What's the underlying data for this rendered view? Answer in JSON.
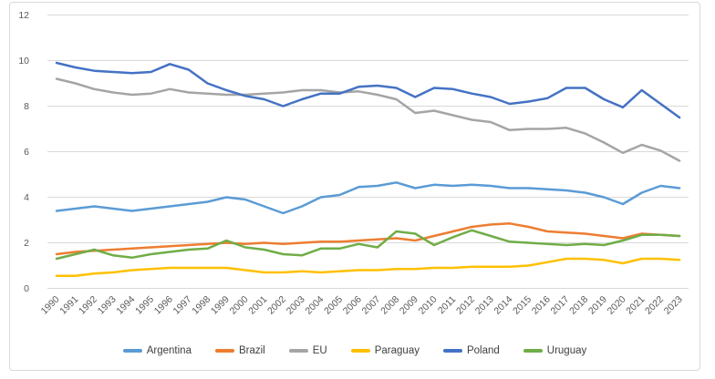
{
  "chart_data": {
    "type": "line",
    "title": "",
    "xlabel": "",
    "ylabel": "",
    "ylim": [
      0,
      12
    ],
    "y_tick_labels": [
      0,
      2,
      4,
      6,
      8,
      10,
      12
    ],
    "grid": true,
    "legend_position": "bottom",
    "x": [
      1990,
      1991,
      1992,
      1993,
      1994,
      1995,
      1996,
      1997,
      1998,
      1999,
      2000,
      2001,
      2002,
      2003,
      2004,
      2005,
      2006,
      2007,
      2008,
      2009,
      2010,
      2011,
      2012,
      2013,
      2014,
      2015,
      2016,
      2017,
      2018,
      2019,
      2020,
      2021,
      2022,
      2023
    ],
    "series": [
      {
        "name": "Argentina",
        "color": "#5B9BD5",
        "values": [
          3.4,
          3.5,
          3.6,
          3.5,
          3.4,
          3.5,
          3.6,
          3.7,
          3.8,
          4.0,
          3.9,
          3.6,
          3.3,
          3.6,
          4.0,
          4.1,
          4.45,
          4.5,
          4.65,
          4.4,
          4.55,
          4.5,
          4.55,
          4.5,
          4.4,
          4.4,
          4.35,
          4.3,
          4.2,
          4.0,
          3.7,
          4.2,
          4.5,
          4.4
        ]
      },
      {
        "name": "Brazil",
        "color": "#ED7D31",
        "values": [
          1.5,
          1.6,
          1.65,
          1.7,
          1.75,
          1.8,
          1.85,
          1.9,
          1.95,
          2.0,
          1.95,
          2.0,
          1.95,
          2.0,
          2.05,
          2.05,
          2.1,
          2.15,
          2.2,
          2.1,
          2.3,
          2.5,
          2.7,
          2.8,
          2.85,
          2.7,
          2.5,
          2.45,
          2.4,
          2.3,
          2.2,
          2.4,
          2.35,
          2.3
        ]
      },
      {
        "name": "EU",
        "color": "#A5A5A5",
        "values": [
          9.2,
          9.0,
          8.75,
          8.6,
          8.5,
          8.55,
          8.75,
          8.6,
          8.55,
          8.5,
          8.5,
          8.55,
          8.6,
          8.7,
          8.7,
          8.6,
          8.65,
          8.5,
          8.3,
          7.7,
          7.8,
          7.6,
          7.4,
          7.3,
          6.95,
          7.0,
          7.0,
          7.05,
          6.8,
          6.4,
          5.95,
          6.3,
          6.05,
          5.6
        ]
      },
      {
        "name": "Paraguay",
        "color": "#FFC000",
        "values": [
          0.55,
          0.55,
          0.65,
          0.7,
          0.8,
          0.85,
          0.9,
          0.9,
          0.9,
          0.9,
          0.8,
          0.7,
          0.7,
          0.75,
          0.7,
          0.75,
          0.8,
          0.8,
          0.85,
          0.85,
          0.9,
          0.9,
          0.95,
          0.95,
          0.95,
          1.0,
          1.15,
          1.3,
          1.3,
          1.25,
          1.1,
          1.3,
          1.3,
          1.25
        ]
      },
      {
        "name": "Poland",
        "color": "#4472C4",
        "values": [
          9.9,
          9.7,
          9.55,
          9.5,
          9.45,
          9.5,
          9.85,
          9.6,
          9.0,
          8.7,
          8.45,
          8.3,
          8.0,
          8.3,
          8.55,
          8.55,
          8.85,
          8.9,
          8.8,
          8.4,
          8.8,
          8.75,
          8.55,
          8.4,
          8.1,
          8.2,
          8.35,
          8.8,
          8.8,
          8.3,
          7.95,
          8.7,
          8.1,
          7.5
        ]
      },
      {
        "name": "Uruguay",
        "color": "#70AD47",
        "values": [
          1.3,
          1.5,
          1.7,
          1.45,
          1.35,
          1.5,
          1.6,
          1.7,
          1.75,
          2.1,
          1.8,
          1.7,
          1.5,
          1.45,
          1.75,
          1.75,
          1.95,
          1.8,
          2.5,
          2.4,
          1.9,
          2.25,
          2.55,
          2.3,
          2.05,
          2.0,
          1.95,
          1.9,
          1.95,
          1.9,
          2.1,
          2.35,
          2.35,
          2.3
        ]
      }
    ]
  },
  "style": {
    "grid_color": "#d9d9d9",
    "tick_text_color": "#595959",
    "legend_text_color": "#404040",
    "frame_border_color": "#d9d9d9",
    "background_color": "#ffffff"
  }
}
